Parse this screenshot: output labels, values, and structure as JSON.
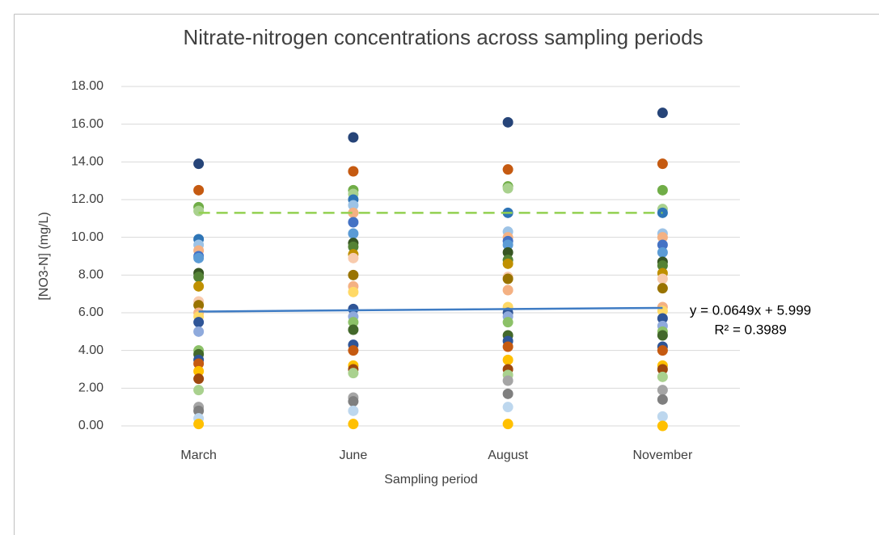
{
  "chart_data": {
    "type": "scatter",
    "title": "Nitrate-nitrogen concentrations across sampling periods",
    "x_label": "Sampling period",
    "y_label": "[NO3-N] (mg/L)",
    "categories": [
      "March",
      "June",
      "August",
      "November"
    ],
    "ylim": [
      0,
      18
    ],
    "yticks": [
      {
        "value": 0,
        "label": "0.00"
      },
      {
        "value": 2,
        "label": "2.00"
      },
      {
        "value": 4,
        "label": "4.00"
      },
      {
        "value": 6,
        "label": "6.00"
      },
      {
        "value": 8,
        "label": "8.00"
      },
      {
        "value": 10,
        "label": "10.00"
      },
      {
        "value": 12,
        "label": "12.00"
      },
      {
        "value": 14,
        "label": "14.00"
      },
      {
        "value": 16,
        "label": "16.00"
      },
      {
        "value": 18,
        "label": "18.00"
      }
    ],
    "grid": true,
    "reference_line": {
      "value": 11.3,
      "color": "#92d050"
    },
    "trendline": {
      "slope": 0.0649,
      "intercept": 5.999,
      "color": "#3f7cc4",
      "label": "y = 0.0649x + 5.999",
      "r2_label": "R² = 0.3989"
    },
    "series": [
      {
        "color": "#264478",
        "values": [
          13.9,
          15.3,
          16.1,
          16.6
        ]
      },
      {
        "color": "#c55a11",
        "values": [
          12.5,
          13.5,
          13.6,
          13.9
        ]
      },
      {
        "color": "#70ad47",
        "values": [
          11.6,
          12.5,
          12.7,
          12.5
        ]
      },
      {
        "color": "#a9d18e",
        "values": [
          11.4,
          12.3,
          12.6,
          11.5
        ]
      },
      {
        "color": "#2e75b6",
        "values": [
          9.9,
          12.0,
          11.3,
          11.3
        ]
      },
      {
        "color": "#9dc3e6",
        "values": [
          9.6,
          11.7,
          10.3,
          10.2
        ]
      },
      {
        "color": "#f4b183",
        "values": [
          9.3,
          11.3,
          10.0,
          10.0
        ]
      },
      {
        "color": "#4472c4",
        "values": [
          9.0,
          10.8,
          9.8,
          9.6
        ]
      },
      {
        "color": "#5b9bd5",
        "values": [
          8.9,
          10.2,
          9.6,
          9.2
        ]
      },
      {
        "color": "#375623",
        "values": [
          8.1,
          9.7,
          9.2,
          8.7
        ]
      },
      {
        "color": "#548235",
        "values": [
          7.9,
          9.5,
          8.8,
          8.5
        ]
      },
      {
        "color": "#bf9000",
        "values": [
          7.4,
          9.1,
          8.6,
          8.1
        ]
      },
      {
        "color": "#f8cbad",
        "values": [
          6.6,
          8.9,
          7.9,
          7.8
        ]
      },
      {
        "color": "#997300",
        "values": [
          6.4,
          8.0,
          7.8,
          7.3
        ]
      },
      {
        "color": "#f4b183",
        "values": [
          6.0,
          7.4,
          7.2,
          6.3
        ]
      },
      {
        "color": "#ffd966",
        "values": [
          5.8,
          7.1,
          6.3,
          6.1
        ]
      },
      {
        "color": "#2f5597",
        "values": [
          5.5,
          6.2,
          6.0,
          5.7
        ]
      },
      {
        "color": "#8faadc",
        "values": [
          5.0,
          5.8,
          5.8,
          5.3
        ]
      },
      {
        "color": "#8cc168",
        "values": [
          4.0,
          5.5,
          5.5,
          5.0
        ]
      },
      {
        "color": "#43682b",
        "values": [
          3.8,
          5.1,
          4.8,
          4.8
        ]
      },
      {
        "color": "#2f5597",
        "values": [
          3.5,
          4.3,
          4.5,
          4.2
        ]
      },
      {
        "color": "#c55a11",
        "values": [
          3.3,
          4.0,
          4.2,
          4.0
        ]
      },
      {
        "color": "#ffc000",
        "values": [
          2.9,
          3.2,
          3.5,
          3.2
        ]
      },
      {
        "color": "#9e480e",
        "values": [
          2.5,
          3.0,
          3.0,
          3.0
        ]
      },
      {
        "color": "#a9d18e",
        "values": [
          1.9,
          2.8,
          2.7,
          2.6
        ]
      },
      {
        "color": "#a5a5a5",
        "values": [
          1.0,
          1.5,
          2.4,
          1.9
        ]
      },
      {
        "color": "#7f7f7f",
        "values": [
          0.8,
          1.3,
          1.7,
          1.4
        ]
      },
      {
        "color": "#bdd7ee",
        "values": [
          0.4,
          0.8,
          1.0,
          0.5
        ]
      },
      {
        "color": "#ffc000",
        "values": [
          0.1,
          0.1,
          0.1,
          0.0
        ]
      }
    ]
  }
}
